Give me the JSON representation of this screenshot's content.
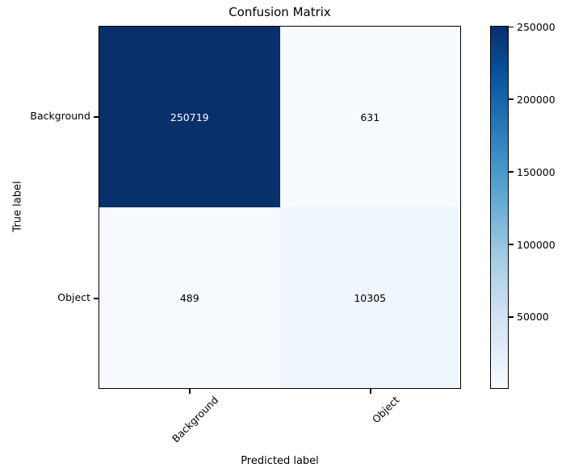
{
  "chart_data": {
    "type": "heatmap",
    "title": "Confusion Matrix",
    "xlabel": "Predicted label",
    "ylabel": "True label",
    "x_categories": [
      "Background",
      "Object"
    ],
    "y_categories": [
      "Background",
      "Object"
    ],
    "matrix": [
      [
        250719,
        631
      ],
      [
        489,
        10305
      ]
    ],
    "cells": [
      {
        "row": "Background",
        "col": "Background",
        "value": "250719",
        "bg": "#08306b",
        "fg": "#ffffff"
      },
      {
        "row": "Background",
        "col": "Object",
        "value": "631",
        "bg": "#f7fbff",
        "fg": "#000000"
      },
      {
        "row": "Object",
        "col": "Background",
        "value": "489",
        "bg": "#f7fbff",
        "fg": "#000000"
      },
      {
        "row": "Object",
        "col": "Object",
        "value": "10305",
        "bg": "#eef5fc",
        "fg": "#000000"
      }
    ],
    "colormap": {
      "name": "Blues",
      "stops_low_to_high": [
        "#f7fbff",
        "#deebf7",
        "#c6dbef",
        "#9ecae1",
        "#6baed6",
        "#4292c6",
        "#2171b5",
        "#08519c",
        "#08306b"
      ]
    },
    "colorbar": {
      "vmin": 489,
      "vmax": 250719,
      "ticks": [
        50000,
        100000,
        150000,
        200000,
        250000
      ],
      "position": "right"
    },
    "grid": false,
    "legend_position": "right-colorbar",
    "xtick_rotation_deg": 45
  }
}
